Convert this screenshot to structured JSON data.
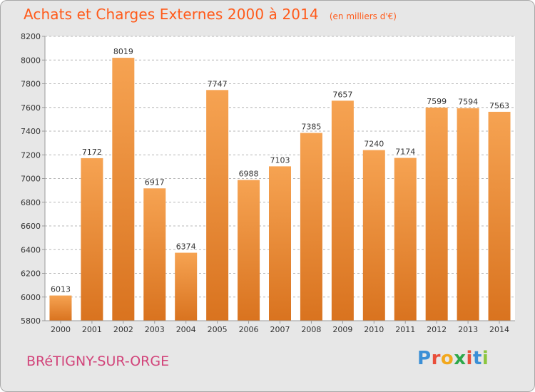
{
  "title": "Achats et Charges Externes 2000 à 2014",
  "unit_note": "(en milliers d'€)",
  "city": "BRéTIGNY-SUR-ORGE",
  "brand": {
    "letters": [
      "P",
      "r",
      "o",
      "x",
      "i",
      "t",
      "i"
    ],
    "colors": [
      "#3b8fd6",
      "#e94e3a",
      "#f2a81d",
      "#2ea84a",
      "#e94e3a",
      "#3b8fd6",
      "#8cc63f"
    ]
  },
  "colors": {
    "bar_light": "#f6a352",
    "bar_dark": "#d9731f",
    "grid": "#b7b7b7",
    "text": "#333333",
    "title": "#ff5a1a",
    "city": "#d2447a"
  },
  "chart_data": {
    "type": "bar",
    "categories": [
      "2000",
      "2001",
      "2002",
      "2003",
      "2004",
      "2005",
      "2006",
      "2007",
      "2008",
      "2009",
      "2010",
      "2011",
      "2012",
      "2013",
      "2014"
    ],
    "values": [
      6013,
      7172,
      8019,
      6917,
      6374,
      7747,
      6988,
      7103,
      7385,
      7657,
      7240,
      7174,
      7599,
      7594,
      7563
    ],
    "ylim": [
      5800,
      8200
    ],
    "yticks": [
      5800,
      6000,
      6200,
      6400,
      6600,
      6800,
      7000,
      7200,
      7400,
      7600,
      7800,
      8000,
      8200
    ],
    "grid": true,
    "xlabel": "",
    "ylabel": ""
  }
}
